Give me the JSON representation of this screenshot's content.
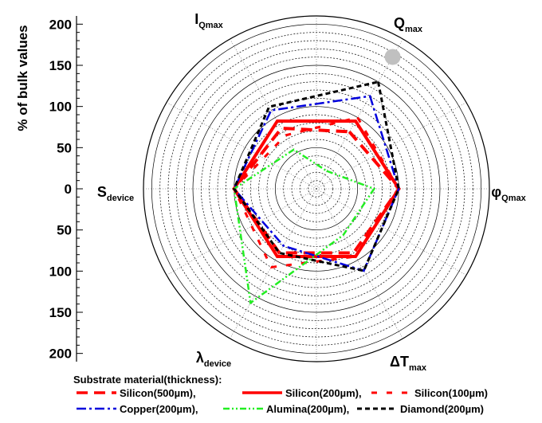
{
  "chart_data": {
    "type": "radar",
    "ylabel": "% of bulk values",
    "rlim": [
      0,
      210
    ],
    "grid": true,
    "axis_ticks_upper": [
      "200",
      "150",
      "100",
      "50",
      "0"
    ],
    "axis_ticks_lower": [
      "50",
      "100",
      "150",
      "200"
    ],
    "axes": [
      {
        "key": "Q",
        "main": "Q",
        "sub": "max",
        "prefix": "",
        "angle": 60
      },
      {
        "key": "phi",
        "main": "φ",
        "sub": "Qmax",
        "prefix": "",
        "angle": 0
      },
      {
        "key": "dT",
        "main": "T",
        "sub": "max",
        "prefix": "Δ",
        "angle": -60
      },
      {
        "key": "lambda",
        "main": "λ",
        "sub": "device",
        "prefix": "",
        "angle": -120
      },
      {
        "key": "S",
        "main": "S",
        "sub": "device",
        "prefix": "",
        "angle": 180
      },
      {
        "key": "I",
        "main": "I",
        "sub": "Qmax",
        "prefix": "",
        "angle": 120
      }
    ],
    "legend_title": "Substrate material(thickness):",
    "legend_position": "bottom",
    "series": [
      {
        "name": "Silicon(500µm),",
        "color": "#ff0000",
        "dash": "14,8",
        "width": 4,
        "values": [
          80,
          100,
          90,
          90,
          100,
          85
        ]
      },
      {
        "name": "Silicon(200µm),",
        "color": "#ff0000",
        "dash": "",
        "width": 4,
        "values": [
          95,
          100,
          95,
          95,
          100,
          95
        ]
      },
      {
        "name": "Silicon(100µm)",
        "color": "#ff0000",
        "dash": "7,12",
        "width": 3,
        "values": [
          100,
          100,
          95,
          110,
          100,
          75
        ]
      },
      {
        "name": "Copper(200µm),",
        "color": "#0000dd",
        "dash": "12,4,3,4",
        "width": 2.5,
        "values": [
          130,
          100,
          115,
          80,
          100,
          110
        ]
      },
      {
        "name": "Alumina(200µm),",
        "color": "#22ee22",
        "dash": "8,3,2,3,2,3",
        "width": 2.5,
        "values": [
          25,
          70,
          65,
          160,
          100,
          55
        ]
      },
      {
        "name": "Diamond(200µm)",
        "color": "#000000",
        "dash": "6,4",
        "width": 3,
        "values": [
          150,
          100,
          115,
          90,
          100,
          115
        ]
      }
    ],
    "annotations": [
      {
        "type": "marker",
        "shape": "circle",
        "color": "#c0c0c0",
        "axis": "Q",
        "value": 185
      }
    ]
  }
}
